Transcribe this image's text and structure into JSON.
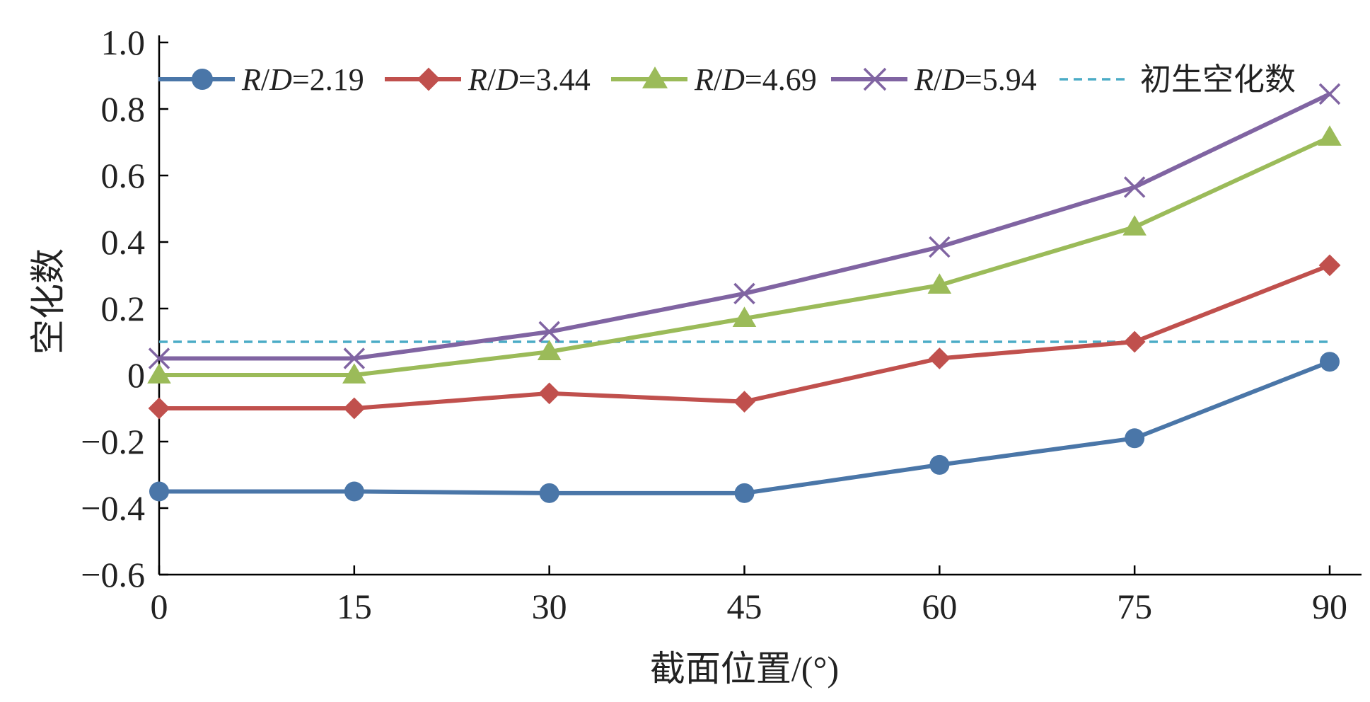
{
  "chart_data": {
    "type": "line",
    "title": "",
    "xlabel": "截面位置/(°)",
    "ylabel": "空化数",
    "x": [
      0,
      15,
      30,
      45,
      60,
      75,
      90
    ],
    "x_tick_labels": [
      "0",
      "15",
      "30",
      "45",
      "60",
      "75",
      "90"
    ],
    "xlim": [
      0,
      90
    ],
    "ylim": [
      -0.6,
      1.0
    ],
    "y_ticks": [
      -0.6,
      -0.4,
      -0.2,
      0,
      0.2,
      0.4,
      0.6,
      0.8,
      1.0
    ],
    "y_tick_labels": [
      "−0.6",
      "−0.4",
      "−0.2",
      "0",
      "0.2",
      "0.4",
      "0.6",
      "0.8",
      "1.0"
    ],
    "grid": false,
    "legend_position": "top",
    "series": [
      {
        "name_prefix": "R",
        "name_sep": "/",
        "name_mid": "D",
        "name_value": "=2.19",
        "marker": "circle",
        "color": "#4a76a8",
        "values": [
          -0.35,
          -0.35,
          -0.355,
          -0.355,
          -0.27,
          -0.19,
          0.04
        ]
      },
      {
        "name_prefix": "R",
        "name_sep": "/",
        "name_mid": "D",
        "name_value": "=3.44",
        "marker": "diamond",
        "color": "#c0504d",
        "values": [
          -0.1,
          -0.1,
          -0.055,
          -0.08,
          0.05,
          0.1,
          0.33
        ]
      },
      {
        "name_prefix": "R",
        "name_sep": "/",
        "name_mid": "D",
        "name_value": "=4.69",
        "marker": "triangle",
        "color": "#9bbb59",
        "values": [
          0.0,
          0.0,
          0.07,
          0.17,
          0.27,
          0.445,
          0.715
        ]
      },
      {
        "name_prefix": "R",
        "name_sep": "/",
        "name_mid": "D",
        "name_value": "=5.94",
        "marker": "x",
        "color": "#8064a2",
        "values": [
          0.05,
          0.05,
          0.13,
          0.245,
          0.385,
          0.565,
          0.845
        ]
      }
    ],
    "reference_line": {
      "name": "初生空化数",
      "value": 0.1,
      "style": "dashed",
      "color": "#4bacc6"
    }
  }
}
